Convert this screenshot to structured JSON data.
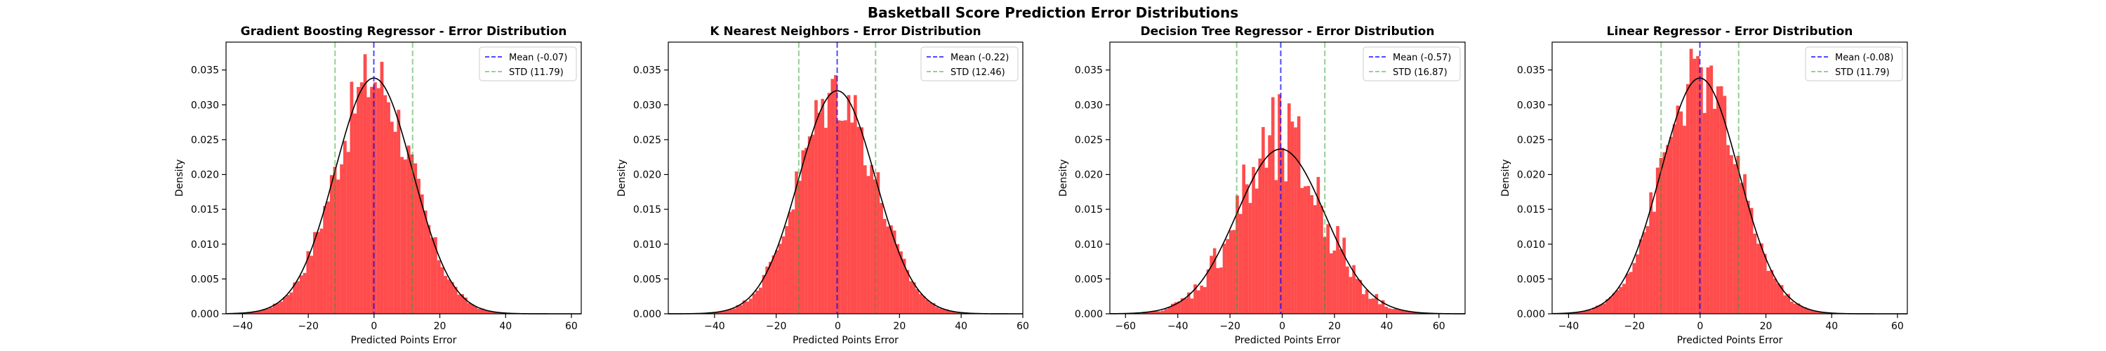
{
  "figure": {
    "title": "Basketball Score Prediction Error Distributions"
  },
  "style": {
    "bar_color": "#ff0000",
    "bar_opacity": 0.7,
    "mean_color": "#0000ff",
    "std_color": "#2ca02c",
    "curve_color": "#000000"
  },
  "chart_data": [
    {
      "type": "histogram",
      "title": "Gradient Boosting Regressor - Error Distribution",
      "xlabel": "Predicted Points Error",
      "ylabel": "Density",
      "xlim": [
        -45,
        63
      ],
      "ylim": [
        0,
        0.039
      ],
      "xticks": [
        -40,
        -20,
        0,
        20,
        40,
        60
      ],
      "yticks": [
        0.0,
        0.005,
        0.01,
        0.015,
        0.02,
        0.025,
        0.03,
        0.035
      ],
      "ytick_labels": [
        "0.000",
        "0.005",
        "0.010",
        "0.015",
        "0.020",
        "0.025",
        "0.030",
        "0.035"
      ],
      "mean": -0.07,
      "std": 11.79,
      "legend": [
        "Mean (-0.07)",
        "STD (11.79)"
      ],
      "legend_loc": "upper right",
      "bins": {
        "start": -42,
        "end": 60,
        "count": 100
      },
      "grid": false
    },
    {
      "type": "histogram",
      "title": "K Nearest Neighbors - Error Distribution",
      "xlabel": "Predicted Points Error",
      "ylabel": "Density",
      "xlim": [
        -55,
        60
      ],
      "ylim": [
        0,
        0.039
      ],
      "xticks": [
        -40,
        -20,
        0,
        20,
        40,
        60
      ],
      "yticks": [
        0.0,
        0.005,
        0.01,
        0.015,
        0.02,
        0.025,
        0.03,
        0.035
      ],
      "ytick_labels": [
        "0.000",
        "0.005",
        "0.010",
        "0.015",
        "0.020",
        "0.025",
        "0.030",
        "0.035"
      ],
      "mean": -0.22,
      "std": 12.46,
      "legend": [
        "Mean (-0.22)",
        "STD (12.46)"
      ],
      "legend_loc": "upper right",
      "bins": {
        "start": -50,
        "end": 56,
        "count": 100
      },
      "grid": false
    },
    {
      "type": "histogram",
      "title": "Decision Tree Regressor - Error Distribution",
      "xlabel": "Predicted Points Error",
      "ylabel": "Density",
      "xlim": [
        -66,
        70
      ],
      "ylim": [
        0,
        0.039
      ],
      "xticks": [
        -60,
        -40,
        -20,
        0,
        20,
        40,
        60
      ],
      "yticks": [
        0.0,
        0.005,
        0.01,
        0.015,
        0.02,
        0.025,
        0.03,
        0.035
      ],
      "ytick_labels": [
        "0.000",
        "0.005",
        "0.010",
        "0.015",
        "0.020",
        "0.025",
        "0.030",
        "0.035"
      ],
      "mean": -0.57,
      "std": 16.87,
      "legend": [
        "Mean (-0.57)",
        "STD (16.87)"
      ],
      "legend_loc": "upper right",
      "bins": {
        "start": -60,
        "end": 64,
        "count": 100
      },
      "grid": false
    },
    {
      "type": "histogram",
      "title": "Linear Regressor - Error Distribution",
      "xlabel": "Predicted Points Error",
      "ylabel": "Density",
      "xlim": [
        -45,
        63
      ],
      "ylim": [
        0,
        0.039
      ],
      "xticks": [
        -40,
        -20,
        0,
        20,
        40,
        60
      ],
      "yticks": [
        0.0,
        0.005,
        0.01,
        0.015,
        0.02,
        0.025,
        0.03,
        0.035
      ],
      "ytick_labels": [
        "0.000",
        "0.005",
        "0.010",
        "0.015",
        "0.020",
        "0.025",
        "0.030",
        "0.035"
      ],
      "mean": -0.08,
      "std": 11.79,
      "legend": [
        "Mean (-0.08)",
        "STD (11.79)"
      ],
      "legend_loc": "upper right",
      "bins": {
        "start": -42,
        "end": 60,
        "count": 100
      },
      "grid": false
    }
  ]
}
